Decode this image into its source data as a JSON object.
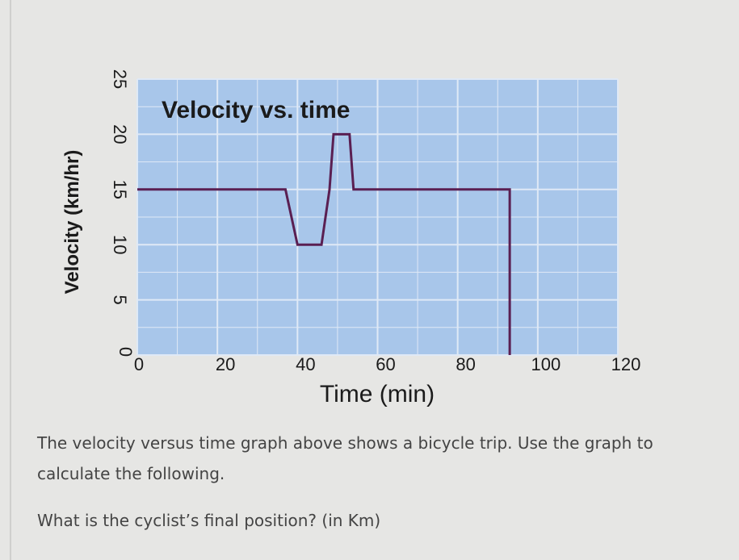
{
  "chart_data": {
    "type": "line",
    "title": "Velocity vs. time",
    "xlabel": "Time (min)",
    "ylabel": "Velocity (km/hr)",
    "xlim": [
      0,
      120
    ],
    "ylim": [
      0,
      25
    ],
    "x_ticks": [
      "0",
      "20",
      "40",
      "60",
      "80",
      "100",
      "120"
    ],
    "y_ticks": [
      "0",
      "5",
      "10",
      "15",
      "20",
      "25"
    ],
    "grid": true,
    "background_color": "#a8c6ea",
    "grid_color": "#dfe9f6",
    "line_color": "#5a1f52",
    "series": [
      {
        "x": [
          0,
          37,
          40,
          46,
          48,
          49,
          53,
          54,
          93,
          93
        ],
        "y": [
          15,
          15,
          10,
          10,
          15,
          20,
          20,
          15,
          15,
          0
        ]
      }
    ]
  },
  "question": {
    "text": "The velocity versus time graph above shows a bicycle trip. Use the graph to calculate the following.",
    "prompt": "What is the cyclist’s final position? (in Km)"
  }
}
